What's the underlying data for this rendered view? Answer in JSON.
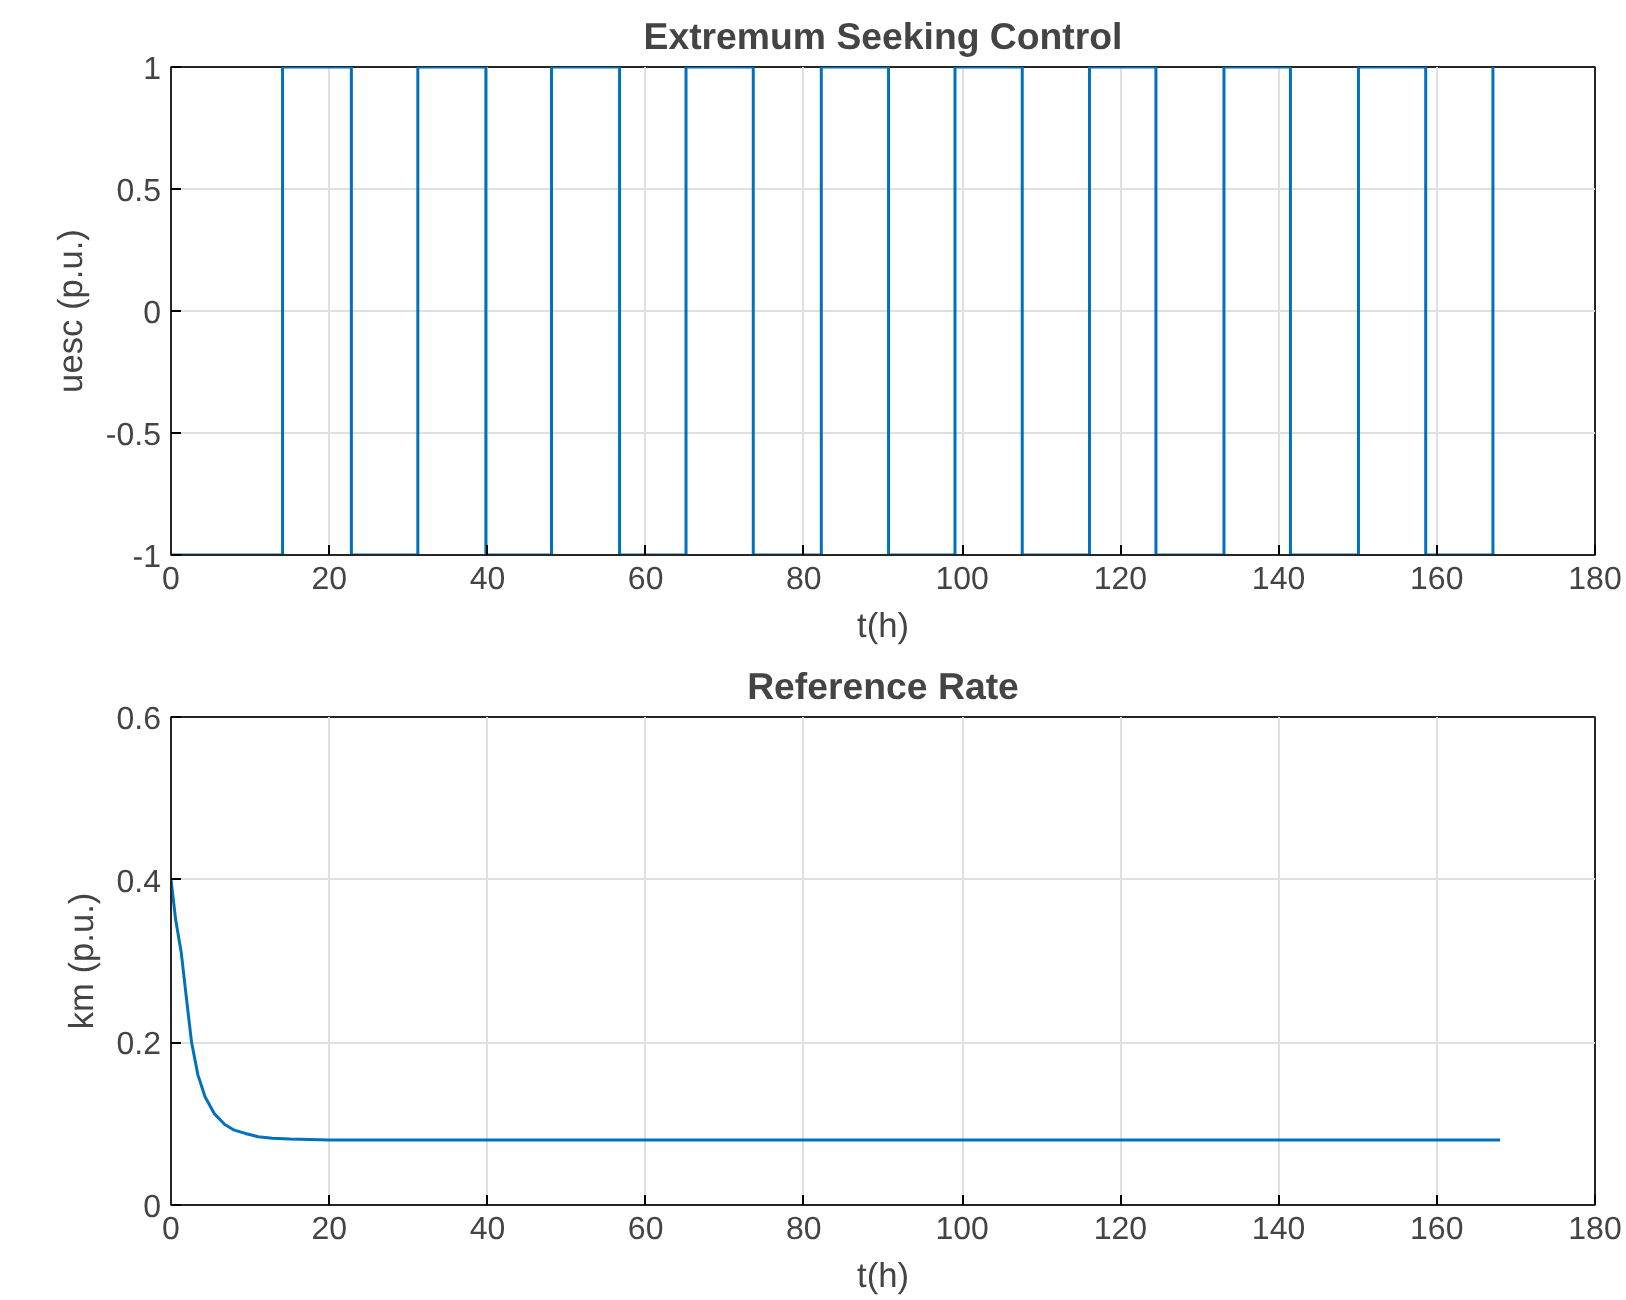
{
  "chart_data": [
    {
      "type": "step",
      "title": "Extremum Seeking Control",
      "xlabel": "t(h)",
      "ylabel": "uesc (p.u.)",
      "x": [
        0,
        14.1,
        22.8,
        31.2,
        39.8,
        48.1,
        56.7,
        65.1,
        73.6,
        82.2,
        90.7,
        99.1,
        107.6,
        116.1,
        124.5,
        133.1,
        141.5,
        150.1,
        158.6,
        167.1
      ],
      "values": [
        -1,
        1,
        -1,
        1,
        -1,
        1,
        -1,
        1,
        -1,
        1,
        -1,
        1,
        -1,
        1,
        -1,
        1,
        -1,
        1,
        -1,
        1
      ],
      "color": "#0072bd",
      "xlim": [
        0,
        180
      ],
      "ylim": [
        -1,
        1
      ],
      "xticks": [
        0,
        20,
        40,
        60,
        80,
        100,
        120,
        140,
        160,
        180
      ],
      "yticks": [
        -1,
        -0.5,
        0,
        0.5,
        1
      ],
      "grid": true
    },
    {
      "type": "line",
      "title": "Reference Rate",
      "xlabel": "t(h)",
      "ylabel": "km (p.u.)",
      "x": [
        0,
        0.6,
        1.3,
        2,
        2.6,
        3.4,
        4.3,
        5.5,
        6.8,
        8,
        9.4,
        11,
        12.8,
        15,
        20,
        40,
        80,
        120,
        168
      ],
      "values": [
        0.4,
        0.35,
        0.31,
        0.25,
        0.2,
        0.16,
        0.133,
        0.112,
        0.099,
        0.092,
        0.088,
        0.084,
        0.082,
        0.081,
        0.08,
        0.08,
        0.08,
        0.08,
        0.08
      ],
      "color": "#0072bd",
      "xlim": [
        0,
        180
      ],
      "ylim": [
        0,
        0.6
      ],
      "xticks": [
        0,
        20,
        40,
        60,
        80,
        100,
        120,
        140,
        160,
        180
      ],
      "yticks": [
        0,
        0.2,
        0.4,
        0.6
      ],
      "grid": true
    }
  ]
}
